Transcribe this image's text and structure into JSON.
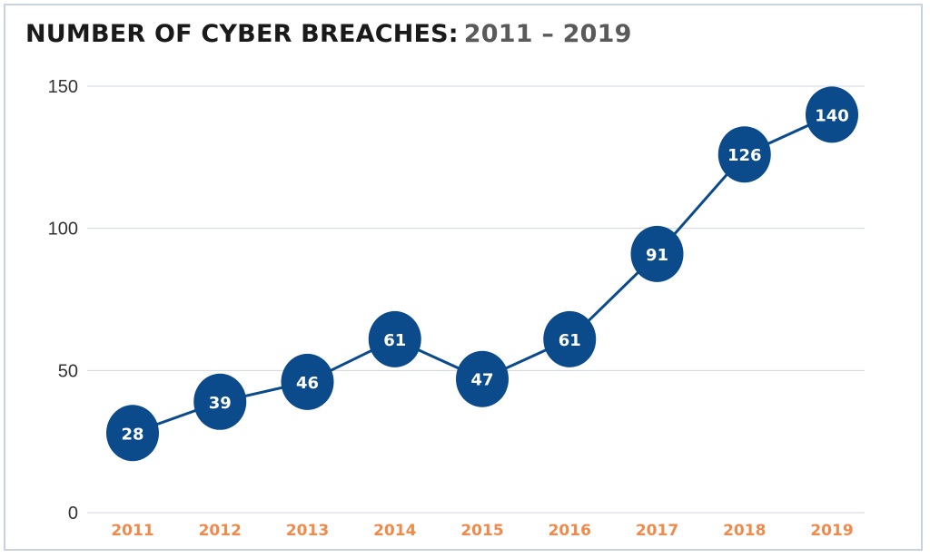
{
  "header": {
    "title_main": "NUMBER OF CYBER BREACHES:",
    "title_sub": "2011 – 2019"
  },
  "colors": {
    "line": "#0b4a8b",
    "marker": "#0b4a8b",
    "marker_text": "#ffffff",
    "xtick": "#f08a4b",
    "grid": "#cfd6df"
  },
  "chart_data": {
    "type": "line",
    "title": "NUMBER OF CYBER BREACHES: 2011 – 2019",
    "categories": [
      "2011",
      "2012",
      "2013",
      "2014",
      "2015",
      "2016",
      "2017",
      "2018",
      "2019"
    ],
    "values": [
      28,
      39,
      46,
      61,
      47,
      61,
      91,
      126,
      140
    ],
    "labels": [
      "28",
      "39",
      "46",
      "61",
      "47",
      "61",
      "91",
      "126",
      "140"
    ],
    "ylim": [
      0,
      150
    ],
    "yticks": [
      "0",
      "50",
      "100",
      "150"
    ],
    "xlabel": "",
    "ylabel": "",
    "grid": true,
    "legend": "none"
  }
}
